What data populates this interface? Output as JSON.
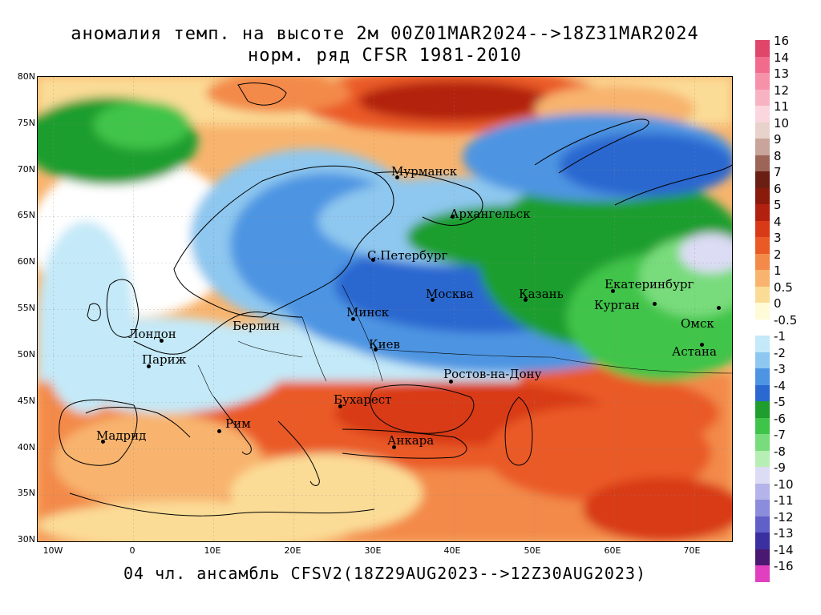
{
  "title": {
    "line1": "аномалия темп. на высоте 2м 00Z01MAR2024-->18Z31MAR2024",
    "line2": "норм. ряд CFSR 1981-2010"
  },
  "footer": "04 чл. ансамбль CFSV2(18Z29AUG2023-->12Z30AUG2023)",
  "map": {
    "lat_ticks": [
      "80N",
      "75N",
      "70N",
      "65N",
      "60N",
      "55N",
      "50N",
      "45N",
      "40N",
      "35N",
      "30N"
    ],
    "lon_ticks": [
      "10W",
      "0",
      "10E",
      "20E",
      "30E",
      "40E",
      "50E",
      "60E",
      "70E"
    ],
    "cities": [
      {
        "name": "Мурманск"
      },
      {
        "name": "Архангельск"
      },
      {
        "name": "С.Петербург"
      },
      {
        "name": "Москва"
      },
      {
        "name": "Казань"
      },
      {
        "name": "Екатеринбург"
      },
      {
        "name": "Курган"
      },
      {
        "name": "Минск"
      },
      {
        "name": "Омск"
      },
      {
        "name": "Берлин"
      },
      {
        "name": "Лондон"
      },
      {
        "name": "Париж"
      },
      {
        "name": "Киев"
      },
      {
        "name": "Астана"
      },
      {
        "name": "Ростов-на-Дону"
      },
      {
        "name": "Бухарест"
      },
      {
        "name": "Рим"
      },
      {
        "name": "Мадрид"
      },
      {
        "name": "Анкара"
      }
    ]
  },
  "legend": [
    {
      "label": "16",
      "color": "#e0456a"
    },
    {
      "label": "14",
      "color": "#f06b8c"
    },
    {
      "label": "13",
      "color": "#f591a8"
    },
    {
      "label": "12",
      "color": "#f8b3c3"
    },
    {
      "label": "11",
      "color": "#fbd6de"
    },
    {
      "label": "10",
      "color": "#e8d2cc"
    },
    {
      "label": "9",
      "color": "#c9a49a"
    },
    {
      "label": "8",
      "color": "#9c6558"
    },
    {
      "label": "7",
      "color": "#6b1f12"
    },
    {
      "label": "6",
      "color": "#8a1a0c"
    },
    {
      "label": "5",
      "color": "#b22010"
    },
    {
      "label": "4",
      "color": "#d83a18"
    },
    {
      "label": "3",
      "color": "#ea5a26"
    },
    {
      "label": "2",
      "color": "#f38a4a"
    },
    {
      "label": "1",
      "color": "#f8b46e"
    },
    {
      "label": "0.5",
      "color": "#fbdc96"
    },
    {
      "label": "0",
      "color": "#fffbd6"
    },
    {
      "label": "-0.5",
      "color": "#ffffff"
    },
    {
      "label": "-1",
      "color": "#c4e9f8"
    },
    {
      "label": "-2",
      "color": "#8ec7ef"
    },
    {
      "label": "-3",
      "color": "#4d95e2"
    },
    {
      "label": "-4",
      "color": "#2b68d0"
    },
    {
      "label": "-5",
      "color": "#1f9e2e"
    },
    {
      "label": "-6",
      "color": "#3fc44a"
    },
    {
      "label": "-7",
      "color": "#78dc7c"
    },
    {
      "label": "-8",
      "color": "#b6eeb4"
    },
    {
      "label": "-9",
      "color": "#dcdcf4"
    },
    {
      "label": "-10",
      "color": "#b4b4ea"
    },
    {
      "label": "-11",
      "color": "#8c8cdc"
    },
    {
      "label": "-12",
      "color": "#6060c8"
    },
    {
      "label": "-13",
      "color": "#3a30a0"
    },
    {
      "label": "-14",
      "color": "#4a1870"
    },
    {
      "label": "-16",
      "color": "#e040c0"
    }
  ]
}
